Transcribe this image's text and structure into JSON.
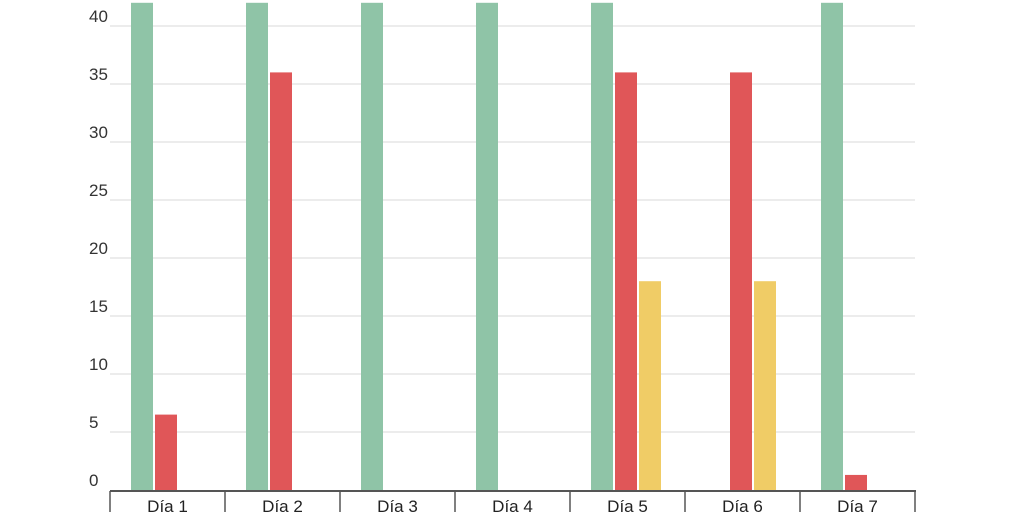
{
  "chart_data": {
    "type": "bar",
    "title": "",
    "xlabel": "",
    "ylabel": "",
    "categories": [
      "Día 1",
      "Día 2",
      "Día 3",
      "Día 4",
      "Día 5",
      "Día 6",
      "Día 7"
    ],
    "series": [
      {
        "color": "#8fc4a7",
        "values": [
          42,
          42,
          42,
          42,
          42,
          0,
          42
        ]
      },
      {
        "color": "#e05658",
        "values": [
          6.5,
          36,
          0,
          0,
          36,
          36,
          1.3
        ]
      },
      {
        "color": "#f0cc66",
        "values": [
          0,
          0,
          0,
          0,
          18,
          18,
          0
        ]
      }
    ],
    "yticks": [
      0,
      5,
      10,
      15,
      20,
      25,
      30,
      35,
      40
    ],
    "ylim": [
      0,
      42
    ],
    "grid": true,
    "legend": "none"
  }
}
